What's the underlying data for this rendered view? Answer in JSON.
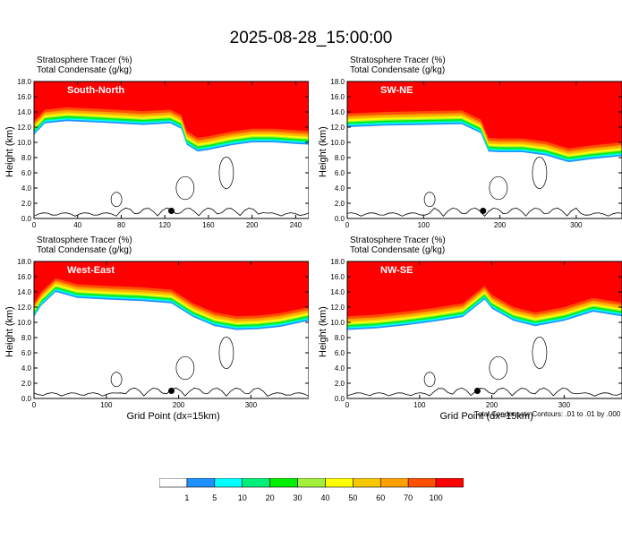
{
  "page_title": "2025-08-28_15:00:00",
  "colors": {
    "scale": [
      "#ffffff",
      "#1e90ff",
      "#00ffff",
      "#00f07a",
      "#00ee00",
      "#a0f03c",
      "#ffff00",
      "#f5c800",
      "#ffa000",
      "#ff5000",
      "#ff0000"
    ]
  },
  "footer_note": "Total Condensate Contours: .01 to .01 by .000",
  "chart_data": [
    {
      "type": "heatmap",
      "title": "South-North",
      "field_labels": [
        "Stratosphere Tracer   (%)",
        "Total Condensate   (g/kg)"
      ],
      "xlabel": "",
      "ylabel": "Height (km)",
      "xlim": [
        0,
        252
      ],
      "ylim": [
        0,
        18
      ],
      "xticks": [
        "0",
        "40",
        "80",
        "120",
        "160",
        "200",
        "240"
      ],
      "yticks": [
        "0.0",
        "2.0",
        "4.0",
        "6.0",
        "8.0",
        "10.0",
        "12.0",
        "14.0",
        "16.0",
        "18.0"
      ],
      "tropopause": {
        "x": [
          0,
          10,
          30,
          60,
          100,
          125,
          135,
          140,
          150,
          160,
          180,
          200,
          220,
          240,
          252
        ],
        "y": [
          12.8,
          14.3,
          14.6,
          14.4,
          14.1,
          14.3,
          13.6,
          11.5,
          10.6,
          10.8,
          11.4,
          11.8,
          11.8,
          11.6,
          11.5
        ]
      },
      "marker": {
        "x": 126,
        "y": 1.0
      }
    },
    {
      "type": "heatmap",
      "title": "SW-NE",
      "field_labels": [
        "Stratosphere Tracer   (%)",
        "Total Condensate   (g/kg)"
      ],
      "xlabel": "",
      "ylabel": "Height (km)",
      "xlim": [
        0,
        360
      ],
      "ylim": [
        0,
        18
      ],
      "xticks": [
        "0",
        "100",
        "200",
        "300"
      ],
      "yticks": [
        "0.0",
        "2.0",
        "4.0",
        "6.0",
        "8.0",
        "10.0",
        "12.0",
        "14.0",
        "16.0",
        "18.0"
      ],
      "tropopause": {
        "x": [
          0,
          50,
          100,
          150,
          175,
          185,
          200,
          230,
          260,
          290,
          320,
          360
        ],
        "y": [
          13.8,
          14.0,
          14.1,
          14.2,
          13.0,
          10.6,
          10.5,
          10.5,
          10.1,
          9.2,
          9.6,
          10.0
        ]
      },
      "marker": {
        "x": 178,
        "y": 1.0
      }
    },
    {
      "type": "heatmap",
      "title": "West-East",
      "field_labels": [
        "Stratosphere Tracer   (%)",
        "Total Condensate   (g/kg)"
      ],
      "xlabel": "Grid Point (dx=15km)",
      "ylabel": "Height (km)",
      "xlim": [
        0,
        380
      ],
      "ylim": [
        0,
        18
      ],
      "xticks": [
        "0",
        "100",
        "200",
        "300"
      ],
      "yticks": [
        "0.0",
        "2.0",
        "4.0",
        "6.0",
        "8.0",
        "10.0",
        "12.0",
        "14.0",
        "16.0",
        "18.0"
      ],
      "tropopause": {
        "x": [
          0,
          10,
          30,
          60,
          100,
          150,
          190,
          220,
          250,
          280,
          310,
          340,
          380
        ],
        "y": [
          12.5,
          14.0,
          15.8,
          15.0,
          14.8,
          14.6,
          14.3,
          12.5,
          11.3,
          10.8,
          10.9,
          11.2,
          12.0
        ]
      },
      "marker": {
        "x": 190,
        "y": 1.0
      }
    },
    {
      "type": "heatmap",
      "title": "NW-SE",
      "field_labels": [
        "Stratosphere Tracer   (%)",
        "Total Condensate   (g/kg)"
      ],
      "xlabel": "Grid Point (dx=15km)",
      "ylabel": "Height (km)",
      "xlim": [
        0,
        380
      ],
      "ylim": [
        0,
        18
      ],
      "xticks": [
        "0",
        "100",
        "200",
        "300"
      ],
      "yticks": [
        "0.0",
        "2.0",
        "4.0",
        "6.0",
        "8.0",
        "10.0",
        "12.0",
        "14.0",
        "16.0",
        "18.0"
      ],
      "tropopause": {
        "x": [
          0,
          40,
          80,
          120,
          160,
          190,
          200,
          230,
          260,
          300,
          340,
          380
        ],
        "y": [
          10.8,
          11.0,
          11.4,
          11.9,
          12.5,
          14.8,
          13.6,
          12.0,
          11.3,
          12.0,
          13.2,
          12.6
        ]
      },
      "marker": {
        "x": 180,
        "y": 1.0
      }
    }
  ],
  "colorbar": {
    "levels": [
      "1",
      "5",
      "10",
      "20",
      "30",
      "40",
      "50",
      "60",
      "70",
      "100"
    ]
  }
}
